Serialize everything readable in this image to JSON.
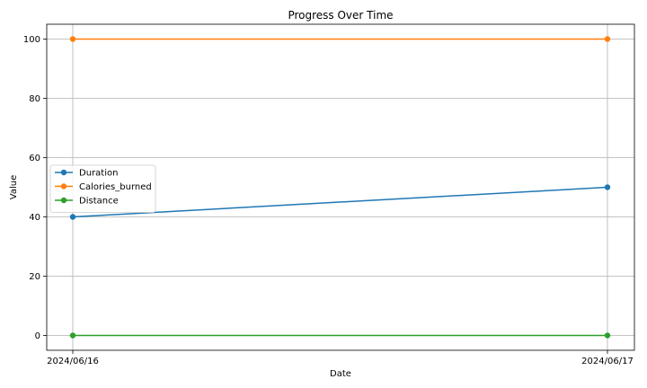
{
  "chart_data": {
    "type": "line",
    "title": "Progress Over Time",
    "xlabel": "Date",
    "ylabel": "Value",
    "categories": [
      "2024/06/16",
      "2024/06/17"
    ],
    "ylim": [
      -5,
      105
    ],
    "yticks": [
      0,
      20,
      40,
      60,
      80,
      100
    ],
    "grid": true,
    "legend": "center-left",
    "series": [
      {
        "name": "Duration",
        "values": [
          40,
          50
        ],
        "color": "#1f77b4"
      },
      {
        "name": "Calories_burned",
        "values": [
          100,
          100
        ],
        "color": "#ff7f0e"
      },
      {
        "name": "Distance",
        "values": [
          0,
          0
        ],
        "color": "#2ca02c"
      }
    ]
  }
}
